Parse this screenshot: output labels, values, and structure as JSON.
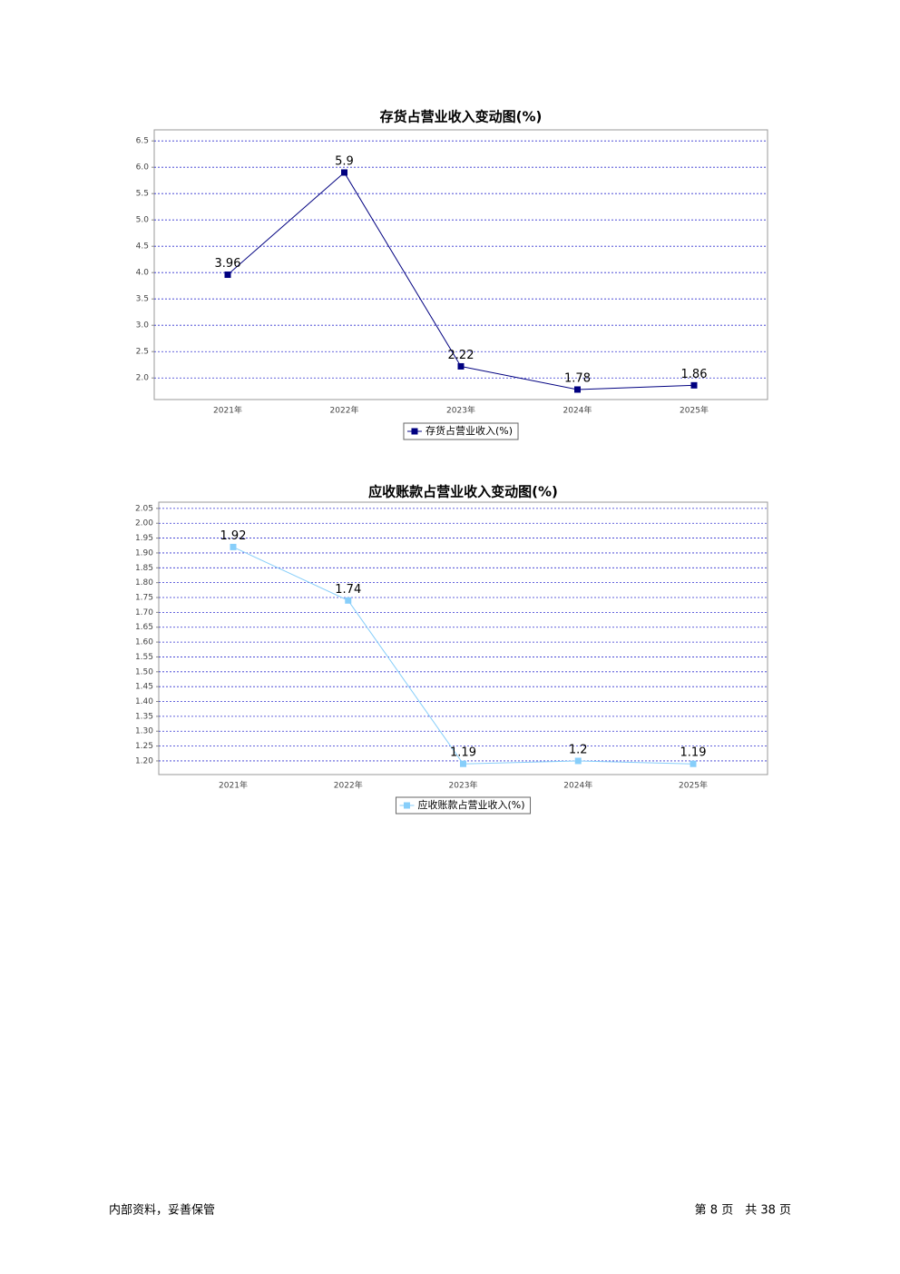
{
  "chart_data": [
    {
      "type": "line",
      "title": "存货占营业收入变动图(%)",
      "categories": [
        "2021年",
        "2022年",
        "2023年",
        "2024年",
        "2025年"
      ],
      "series": [
        {
          "name": "存货占营业收入(%)",
          "color": "#000080",
          "values": [
            3.96,
            5.9,
            2.22,
            1.78,
            1.86
          ]
        }
      ],
      "ylim": [
        1.59,
        6.71
      ],
      "yticks": [
        {
          "value": 2,
          "label": "2.0"
        },
        2.5,
        {
          "value": 3,
          "label": "3.0"
        },
        3.5,
        {
          "value": 4,
          "label": "4.0"
        },
        4.5,
        {
          "value": 5,
          "label": "5.0"
        },
        5.5,
        {
          "value": 6,
          "label": "6.0"
        },
        6.5
      ],
      "grid": true,
      "legend": "bottom"
    },
    {
      "type": "line",
      "title": "应收账款占营业收入变动图(%)",
      "categories": [
        "2021年",
        "2022年",
        "2023年",
        "2024年",
        "2025年"
      ],
      "series": [
        {
          "name": "应收账款占营业收入(%)",
          "color": "#87cefa",
          "values": [
            1.92,
            1.74,
            1.19,
            1.2,
            1.19
          ]
        }
      ],
      "ylim": [
        1.154,
        2.071
      ],
      "yticks": [
        {
          "value": 1.2,
          "label": "1.20"
        },
        1.25,
        {
          "value": 1.3,
          "label": "1.30"
        },
        1.35,
        {
          "value": 1.4,
          "label": "1.40"
        },
        1.45,
        {
          "value": 1.5,
          "label": "1.50"
        },
        1.55,
        {
          "value": 1.6,
          "label": "1.60"
        },
        1.65,
        {
          "value": 1.7,
          "label": "1.70"
        },
        1.75,
        {
          "value": 1.8,
          "label": "1.80"
        },
        1.85,
        {
          "value": 1.9,
          "label": "1.90"
        },
        1.95,
        {
          "value": 2,
          "label": "2.00"
        },
        2.05
      ],
      "grid": true,
      "legend": "bottom"
    }
  ],
  "footer": {
    "left": "内部资料，妥善保管",
    "right": "第 8 页　共 38 页"
  }
}
